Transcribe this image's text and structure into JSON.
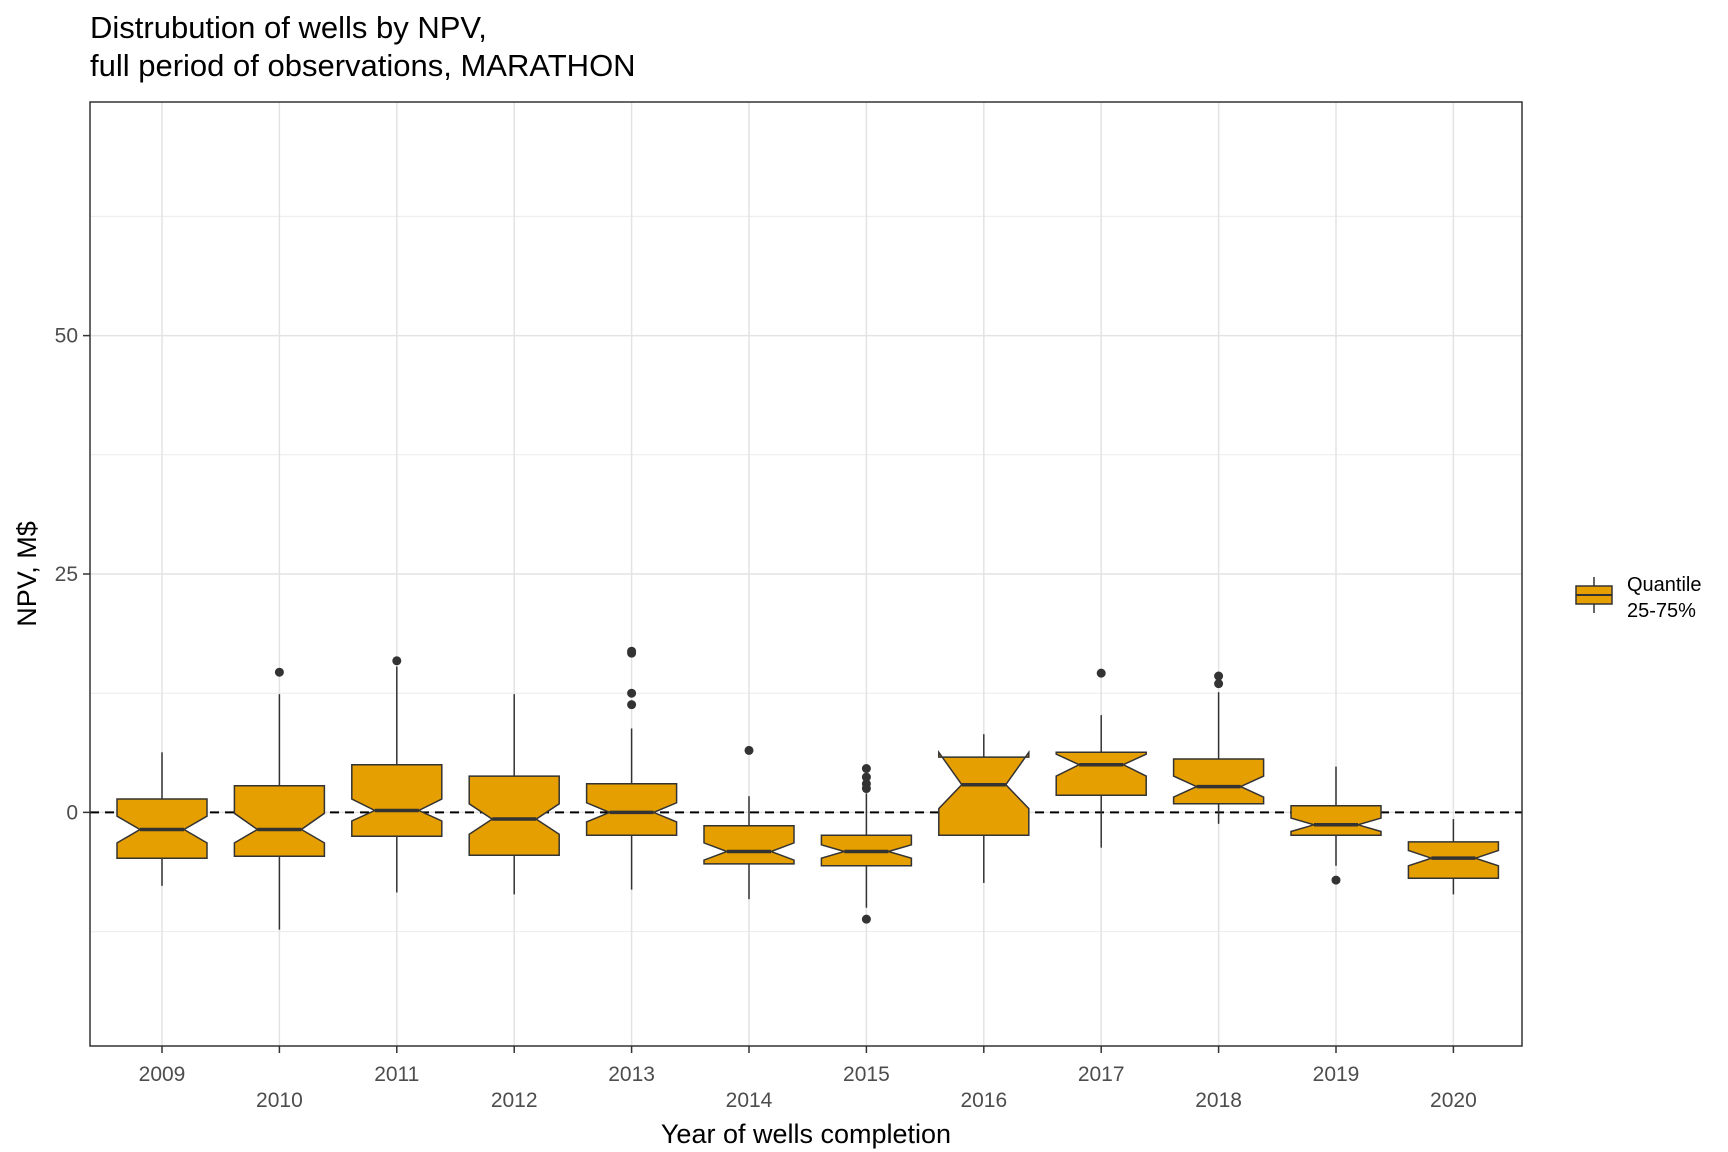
{
  "chart_data": {
    "type": "boxplot",
    "title": "Distrubution of wells by NPV,",
    "subtitle": "full period of observations, MARATHON",
    "xlabel": "Year of wells completion",
    "ylabel": "NPV, M$",
    "ylim": [
      -24.5,
      74.5
    ],
    "yticks": [
      0,
      25,
      50
    ],
    "reference_line": {
      "y": 0,
      "style": "dashed"
    },
    "grid": true,
    "notched": true,
    "fill_color": "#E69F00",
    "legend": {
      "position": "right",
      "entries": [
        "Quantile",
        "25-75%"
      ]
    },
    "categories": [
      "2009",
      "2010",
      "2011",
      "2012",
      "2013",
      "2014",
      "2015",
      "2016",
      "2017",
      "2018",
      "2019",
      "2020"
    ],
    "boxes": [
      {
        "x": "2009",
        "whisker_low": -7.7,
        "q1": -4.8,
        "median": -1.8,
        "q3": 1.4,
        "whisker_high": 6.3,
        "notch_low": -3.2,
        "notch_high": -0.4,
        "outliers": []
      },
      {
        "x": "2010",
        "whisker_low": -12.3,
        "q1": -4.6,
        "median": -1.8,
        "q3": 2.8,
        "whisker_high": 12.4,
        "notch_low": -3.2,
        "notch_high": -0.1,
        "outliers": [
          14.7
        ]
      },
      {
        "x": "2011",
        "whisker_low": -8.4,
        "q1": -2.5,
        "median": 0.2,
        "q3": 5.0,
        "whisker_high": 15.3,
        "notch_low": -0.9,
        "notch_high": 1.4,
        "outliers": [
          15.9
        ]
      },
      {
        "x": "2012",
        "whisker_low": -8.6,
        "q1": -4.5,
        "median": -0.7,
        "q3": 3.8,
        "whisker_high": 12.4,
        "notch_low": -2.3,
        "notch_high": 0.9,
        "outliers": []
      },
      {
        "x": "2013",
        "whisker_low": -8.1,
        "q1": -2.4,
        "median": 0.0,
        "q3": 3.0,
        "whisker_high": 8.8,
        "notch_low": -1.0,
        "notch_high": 1.0,
        "outliers": [
          11.3,
          12.5,
          16.7,
          16.9
        ]
      },
      {
        "x": "2014",
        "whisker_low": -9.1,
        "q1": -5.4,
        "median": -4.1,
        "q3": -1.4,
        "whisker_high": 1.7,
        "notch_low": -5.0,
        "notch_high": -3.2,
        "outliers": [
          6.5
        ]
      },
      {
        "x": "2015",
        "whisker_low": -10.0,
        "q1": -5.6,
        "median": -4.1,
        "q3": -2.4,
        "whisker_high": 2.0,
        "notch_low": -4.8,
        "notch_high": -3.4,
        "outliers": [
          -11.2,
          2.5,
          3.0,
          3.7,
          4.6
        ]
      },
      {
        "x": "2016",
        "whisker_low": -7.4,
        "q1": -2.4,
        "median": 2.9,
        "q3": 5.8,
        "whisker_high": 8.2,
        "notch_low": 0.4,
        "notch_high": 6.3,
        "outliers": []
      },
      {
        "x": "2017",
        "whisker_low": -3.7,
        "q1": 1.8,
        "median": 5.0,
        "q3": 6.3,
        "whisker_high": 10.2,
        "notch_low": 3.8,
        "notch_high": 6.1,
        "outliers": [
          14.6
        ]
      },
      {
        "x": "2018",
        "whisker_low": -1.2,
        "q1": 0.9,
        "median": 2.7,
        "q3": 5.6,
        "whisker_high": 12.6,
        "notch_low": 1.6,
        "notch_high": 3.8,
        "outliers": [
          13.5,
          14.3
        ]
      },
      {
        "x": "2019",
        "whisker_low": -5.6,
        "q1": -2.4,
        "median": -1.3,
        "q3": 0.7,
        "whisker_high": 4.8,
        "notch_low": -2.0,
        "notch_high": -0.6,
        "outliers": [
          -7.1
        ]
      },
      {
        "x": "2020",
        "whisker_low": -8.6,
        "q1": -6.9,
        "median": -4.8,
        "q3": -3.1,
        "whisker_high": -0.7,
        "notch_low": -5.6,
        "notch_high": -4.0,
        "outliers": []
      }
    ]
  }
}
